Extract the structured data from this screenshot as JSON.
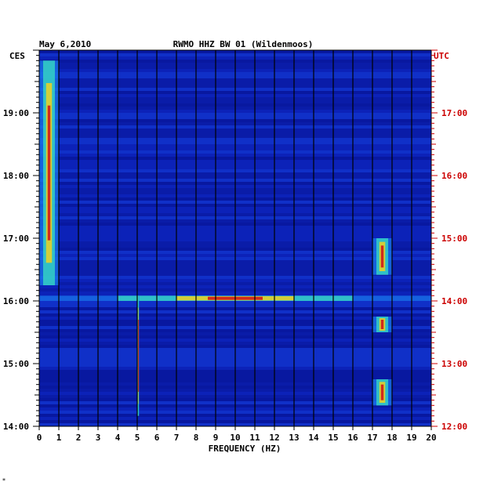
{
  "chart_data": {
    "type": "heatmap",
    "date_label": "May 6,2010",
    "title": "RWMO HHZ BW 01 (Wildenmoos)",
    "xlabel": "FREQUENCY (HZ)",
    "left_axis_label": "CES",
    "right_axis_label": "UTC",
    "x_ticks": [
      "0",
      "1",
      "2",
      "3",
      "4",
      "5",
      "6",
      "7",
      "8",
      "9",
      "10",
      "11",
      "12",
      "13",
      "14",
      "15",
      "16",
      "17",
      "18",
      "19",
      "20"
    ],
    "xlim": [
      0,
      20
    ],
    "time_range_ces": [
      "14:00",
      "19:50"
    ],
    "left_ticks": [
      "14:00",
      "15:00",
      "16:00",
      "17:00",
      "18:00",
      "19:00"
    ],
    "right_ticks": [
      "12:00",
      "13:00",
      "14:00",
      "15:00",
      "16:00",
      "17:00"
    ],
    "colors": {
      "background": "#0a1aa8",
      "grid": "#000000",
      "right_axis": "#cc0000",
      "left_axis": "#000000"
    },
    "notable_features": [
      {
        "label": "strong low-frequency energy 0-1 Hz",
        "x": [
          0,
          1
        ],
        "y_ces": [
          "16:15",
          "19:50"
        ]
      },
      {
        "label": "broadband event",
        "x": [
          0,
          20
        ],
        "y_ces": [
          "16:00",
          "16:05"
        ]
      },
      {
        "label": "narrow line near 5 Hz",
        "x": [
          5,
          5.1
        ],
        "y_ces": [
          "14:10",
          "16:05"
        ]
      },
      {
        "label": "17.5 Hz burst",
        "x": [
          17,
          18
        ],
        "y_ces": [
          "16:25",
          "17:00"
        ]
      },
      {
        "label": "17.5 Hz burst",
        "x": [
          17,
          18
        ],
        "y_ces": [
          "15:30",
          "15:45"
        ]
      },
      {
        "label": "17.5 Hz burst",
        "x": [
          17,
          18
        ],
        "y_ces": [
          "14:20",
          "14:45"
        ]
      }
    ],
    "footnote": "*"
  }
}
